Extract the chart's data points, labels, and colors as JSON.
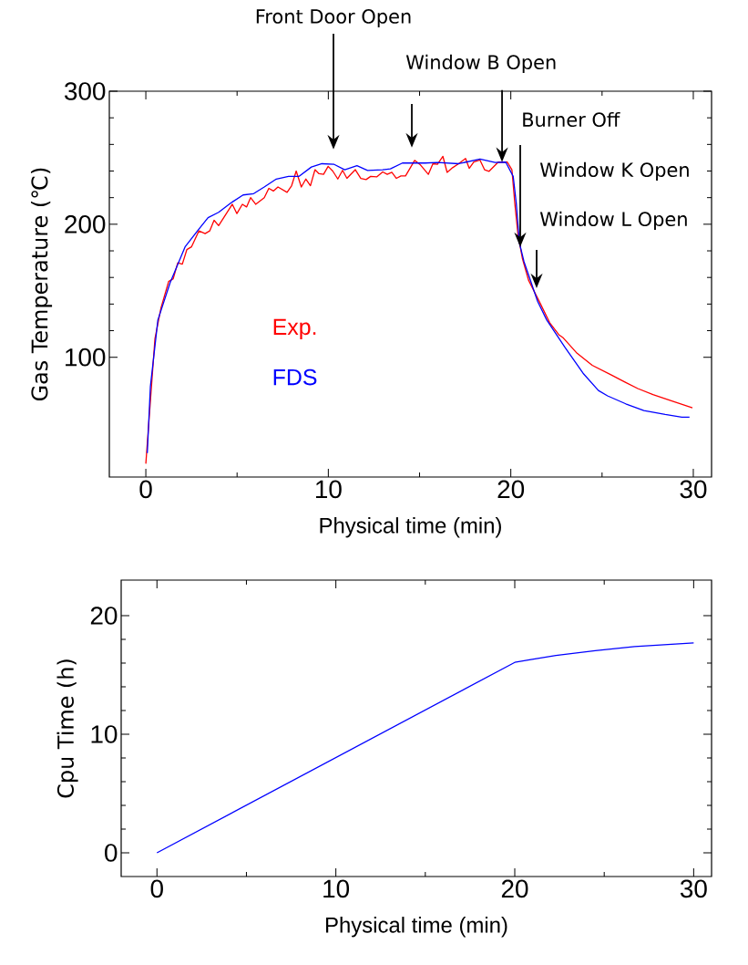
{
  "chart_data": [
    {
      "type": "line",
      "xlabel": "Physical time (min)",
      "ylabel": "Gas Temperature (℃)",
      "xlim": [
        -2,
        31
      ],
      "ylim": [
        10,
        300
      ],
      "xticks": [
        0,
        10,
        20,
        30
      ],
      "yticks": [
        100,
        200,
        300
      ],
      "legend": "left",
      "series": [
        {
          "name": "Exp.",
          "color": "#ff0000",
          "x": [
            0,
            0.5,
            0.83,
            1.25,
            1.5,
            1.75,
            2.0,
            2.25,
            2.5,
            2.91,
            3.25,
            3.5,
            3.74,
            3.99,
            4.74,
            4.99,
            5.29,
            5.52,
            5.74,
            6.02,
            6.49,
            6.74,
            6.99,
            7.24,
            7.74,
            7.99,
            8.24,
            8.52,
            8.77,
            9.02,
            9.27,
            9.49,
            9.74,
            9.99,
            10.24,
            10.52,
            10.78,
            11.02,
            11.48,
            11.78,
            12.07,
            12.32,
            12.65,
            12.98,
            13.23,
            13.48,
            13.73,
            13.98,
            14.23,
            14.73,
            15.06,
            15.48,
            15.73,
            15.98,
            16.28,
            16.51,
            16.81,
            17.14,
            17.52,
            17.72,
            17.97,
            18.31,
            18.56,
            18.81,
            19.31,
            19.81,
            20.06,
            20.22,
            20.39,
            20.64,
            20.97,
            21.63,
            22.13,
            22.63,
            22.88,
            23.63,
            24.46,
            25.46,
            26.3,
            26.96,
            27.79,
            28.79,
            29.95
          ],
          "values": [
            20,
            114,
            137,
            157,
            159,
            171,
            170,
            181,
            183,
            195,
            193,
            195,
            203,
            199,
            215,
            208,
            215,
            213,
            220,
            215,
            220,
            227,
            225,
            228,
            224,
            229,
            240,
            228,
            234,
            229,
            241,
            238,
            237.5,
            243.5,
            240,
            234,
            240.5,
            234.5,
            241,
            234.5,
            233.6,
            236,
            235.6,
            239.3,
            237.5,
            239,
            234.5,
            236.3,
            236.3,
            248,
            244.4,
            237.5,
            245.5,
            245,
            251,
            239,
            242.5,
            245.5,
            249.4,
            242,
            246.7,
            248.3,
            241,
            239.8,
            246.7,
            246.7,
            241,
            215.6,
            192.6,
            174,
            158,
            140,
            126,
            117,
            114.5,
            103,
            94,
            87,
            81,
            76.5,
            72,
            67.4,
            62
          ]
        },
        {
          "name": "FDS",
          "color": "#0000ff",
          "x": [
            0.08,
            0.25,
            0.66,
            1.33,
            2.15,
            2.83,
            3.41,
            3.99,
            4.66,
            5.33,
            5.91,
            6.49,
            7.15,
            7.82,
            8.4,
            9.07,
            9.65,
            10.32,
            10.9,
            11.57,
            12.15,
            12.98,
            13.4,
            14.06,
            15.31,
            15.98,
            17.14,
            18.31,
            19.14,
            19.72,
            20.13,
            20.3,
            20.47,
            20.72,
            21.47,
            21.97,
            22.96,
            23.96,
            24.8,
            25.3,
            26.3,
            27.29,
            28.46,
            29.37,
            29.79
          ],
          "values": [
            28,
            78,
            128,
            156,
            183,
            195,
            205,
            209,
            216,
            222,
            223,
            228,
            234,
            236,
            236,
            243,
            245.5,
            245,
            241,
            244,
            240.5,
            241,
            241.6,
            246,
            246,
            246.4,
            245.5,
            249,
            246.4,
            246.7,
            236,
            215.6,
            186,
            172,
            142,
            128,
            107.6,
            88,
            75,
            71,
            65,
            60,
            57,
            55,
            55
          ]
        }
      ],
      "annotations": [
        "Front Door Open",
        "Window B Open",
        {
          "text": "Burner Off",
          "x": 19.52,
          "y": 246
        },
        "Window K Open",
        "Window L Open"
      ]
    },
    {
      "type": "line",
      "xlabel": "Physical time (min)",
      "ylabel": "Cpu Time (h)",
      "xlim": [
        -2,
        31
      ],
      "ylim": [
        -2,
        23
      ],
      "xticks": [
        0,
        10,
        20,
        30
      ],
      "yticks": [
        0,
        10,
        20
      ],
      "series": [
        {
          "color": "#0000ff",
          "x": [
            0,
            20,
            20.9,
            22.3,
            24.5,
            26.7,
            30
          ],
          "values": [
            0,
            16.06,
            16.3,
            16.65,
            17.05,
            17.4,
            17.7
          ]
        }
      ]
    }
  ]
}
